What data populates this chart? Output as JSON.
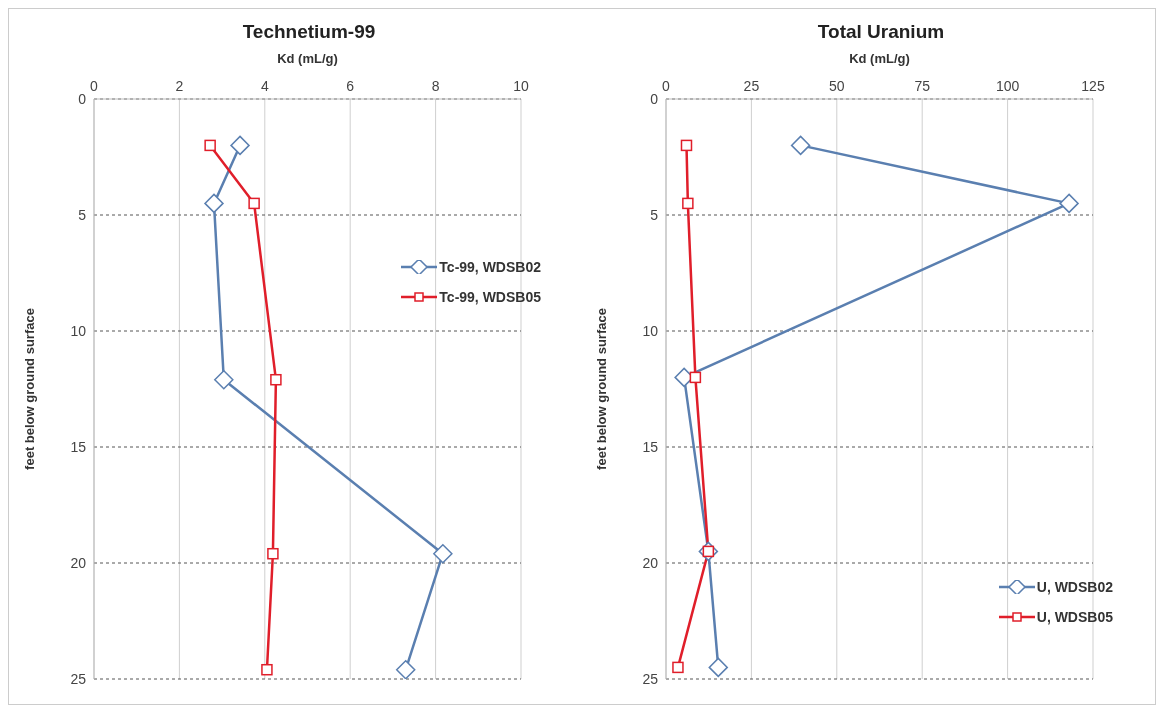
{
  "chart_data": [
    {
      "type": "line",
      "title": "Technetium-99",
      "xlabel": "Kd  (mL/g)",
      "ylabel": "feet below ground surface",
      "xlim": [
        0,
        10
      ],
      "xticks": [
        0,
        2,
        4,
        6,
        8,
        10
      ],
      "ylim": [
        25,
        0
      ],
      "yticks": [
        0,
        5,
        10,
        15,
        20,
        25
      ],
      "grid": true,
      "legend": "right",
      "series": [
        {
          "name": "Tc-99, WDSB02",
          "color": "#5a7fb0",
          "marker": "diamond",
          "x": [
            3.42,
            2.81,
            3.04,
            8.17,
            7.3
          ],
          "values": [
            2.0,
            4.5,
            12.1,
            19.6,
            24.6
          ]
        },
        {
          "name": "Tc-99, WDSB05",
          "color": "#e01e2a",
          "marker": "square",
          "x": [
            2.72,
            3.75,
            4.26,
            4.19,
            4.05
          ],
          "values": [
            2.0,
            4.5,
            12.1,
            19.6,
            24.6
          ]
        }
      ]
    },
    {
      "type": "line",
      "title": "Total Uranium",
      "xlabel": "Kd  (mL/g)",
      "ylabel": "feet below ground surface",
      "xlim": [
        0,
        125
      ],
      "xticks": [
        0,
        25,
        50,
        75,
        100,
        125
      ],
      "ylim": [
        25,
        0
      ],
      "yticks": [
        0,
        5,
        10,
        15,
        20,
        25
      ],
      "grid": true,
      "legend": "bottom right",
      "series": [
        {
          "name": "U, WDSB02",
          "color": "#5a7fb0",
          "marker": "diamond",
          "x": [
            39.4,
            118,
            5.3,
            12.4,
            15.3
          ],
          "values": [
            2.0,
            4.5,
            12.0,
            19.5,
            24.5
          ]
        },
        {
          "name": "U, WDSB05",
          "color": "#e01e2a",
          "marker": "square",
          "x": [
            6,
            6.4,
            8.6,
            12.4,
            3.5
          ],
          "values": [
            2.0,
            4.5,
            12.0,
            19.5,
            24.5
          ]
        }
      ]
    }
  ]
}
